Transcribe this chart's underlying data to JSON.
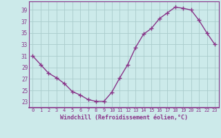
{
  "x": [
    0,
    1,
    2,
    3,
    4,
    5,
    6,
    7,
    8,
    9,
    10,
    11,
    12,
    13,
    14,
    15,
    16,
    17,
    18,
    19,
    20,
    21,
    22,
    23
  ],
  "y": [
    31,
    29.5,
    28,
    27.2,
    26.2,
    24.8,
    24.2,
    23.4,
    23.1,
    23.1,
    24.7,
    27.2,
    29.5,
    32.5,
    34.8,
    35.8,
    37.5,
    38.5,
    39.5,
    39.3,
    39.0,
    37.2,
    35.0,
    33.0
  ],
  "line_color": "#883388",
  "marker": "+",
  "marker_size": 4,
  "marker_lw": 1.0,
  "line_width": 1.0,
  "bg_color": "#cceaea",
  "grid_color": "#aacccc",
  "xlabel": "Windchill (Refroidissement éolien,°C)",
  "xlabel_color": "#883388",
  "tick_color": "#883388",
  "ytick_labels": [
    "23",
    "25",
    "27",
    "29",
    "31",
    "33",
    "35",
    "37",
    "39"
  ],
  "ytick_vals": [
    23,
    25,
    27,
    29,
    31,
    33,
    35,
    37,
    39
  ],
  "xtick_vals": [
    0,
    1,
    2,
    3,
    4,
    5,
    6,
    7,
    8,
    9,
    10,
    11,
    12,
    13,
    14,
    15,
    16,
    17,
    18,
    19,
    20,
    21,
    22,
    23
  ],
  "ylim": [
    22.0,
    40.5
  ],
  "xlim": [
    -0.5,
    23.5
  ],
  "spine_color": "#883388"
}
